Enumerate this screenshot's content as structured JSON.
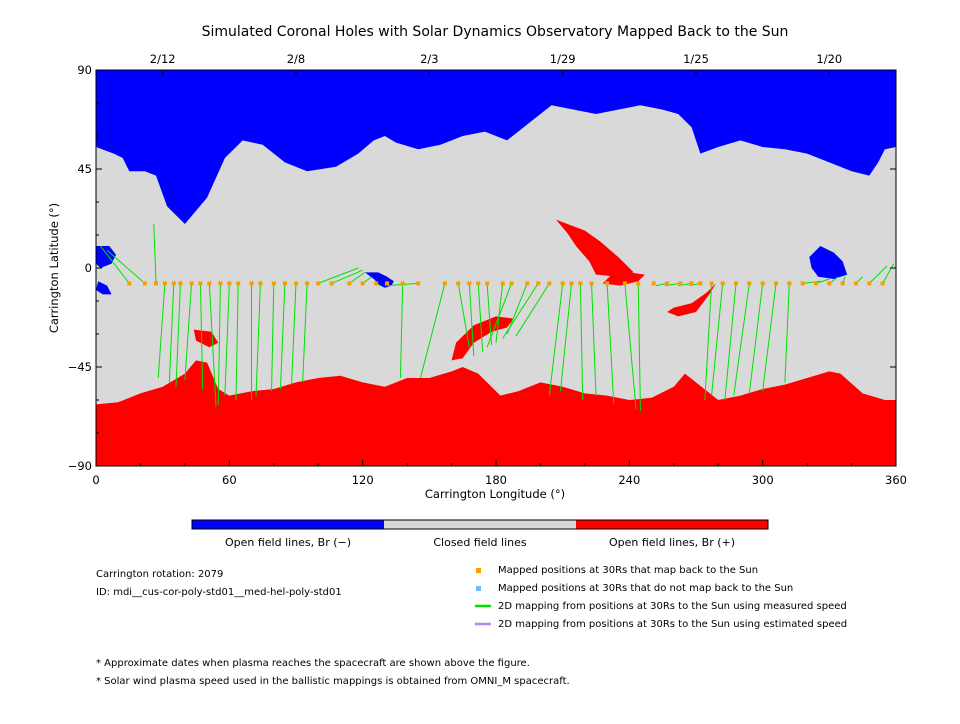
{
  "chart_data": {
    "type": "map",
    "title": "Simulated Coronal Holes with Solar Dynamics Observatory Mapped Back to the Sun",
    "xlabel": "Carrington Longitude (°)",
    "ylabel": "Carrington Latitude (°)",
    "xlim": [
      0,
      360
    ],
    "ylim": [
      -90,
      90
    ],
    "x_ticks": [
      0,
      60,
      120,
      180,
      240,
      300,
      360
    ],
    "y_ticks": [
      90,
      45,
      0,
      -45,
      -90
    ],
    "y_tick_labels": [
      "90",
      "45",
      "0",
      "−45",
      "−90"
    ],
    "top_axis": {
      "dates": [
        {
          "label": "2/12",
          "longitude": 30
        },
        {
          "label": "2/8",
          "longitude": 90
        },
        {
          "label": "2/3",
          "longitude": 150
        },
        {
          "label": "1/29",
          "longitude": 210
        },
        {
          "label": "1/25",
          "longitude": 270
        },
        {
          "label": "1/20",
          "longitude": 330
        }
      ]
    },
    "colors": {
      "open_negative": "#0000ff",
      "closed": "#d9d9d9",
      "open_positive": "#ff0000",
      "mapped_point": "#f5a000",
      "unmapped_point": "#7ab8f5",
      "measured_line": "#00e000",
      "estimated_line": "#b388ee"
    },
    "regions": {
      "north_blue_boundary": [
        [
          0,
          55
        ],
        [
          8,
          52
        ],
        [
          12,
          50
        ],
        [
          15,
          44
        ],
        [
          22,
          44
        ],
        [
          27,
          42
        ],
        [
          32,
          28
        ],
        [
          40,
          20
        ],
        [
          50,
          32
        ],
        [
          58,
          50
        ],
        [
          66,
          58
        ],
        [
          75,
          56
        ],
        [
          85,
          48
        ],
        [
          95,
          44
        ],
        [
          108,
          46
        ],
        [
          118,
          52
        ],
        [
          125,
          58
        ],
        [
          130,
          60
        ],
        [
          135,
          57
        ],
        [
          145,
          54
        ],
        [
          155,
          56
        ],
        [
          165,
          60
        ],
        [
          175,
          62
        ],
        [
          185,
          58
        ],
        [
          195,
          66
        ],
        [
          205,
          74
        ],
        [
          215,
          72
        ],
        [
          225,
          70
        ],
        [
          235,
          72
        ],
        [
          245,
          74
        ],
        [
          255,
          72
        ],
        [
          262,
          70
        ],
        [
          268,
          64
        ],
        [
          272,
          52
        ],
        [
          280,
          55
        ],
        [
          290,
          58
        ],
        [
          300,
          55
        ],
        [
          310,
          54
        ],
        [
          320,
          52
        ],
        [
          330,
          48
        ],
        [
          340,
          44
        ],
        [
          348,
          42
        ],
        [
          352,
          48
        ],
        [
          355,
          54
        ],
        [
          360,
          55
        ]
      ],
      "south_red_boundary": [
        [
          0,
          -62
        ],
        [
          10,
          -61
        ],
        [
          20,
          -57
        ],
        [
          30,
          -54
        ],
        [
          40,
          -48
        ],
        [
          45,
          -42
        ],
        [
          50,
          -43
        ],
        [
          55,
          -55
        ],
        [
          60,
          -58
        ],
        [
          70,
          -56
        ],
        [
          80,
          -55
        ],
        [
          90,
          -52
        ],
        [
          100,
          -50
        ],
        [
          110,
          -49
        ],
        [
          120,
          -52
        ],
        [
          130,
          -54
        ],
        [
          140,
          -50
        ],
        [
          150,
          -50
        ],
        [
          160,
          -47
        ],
        [
          165,
          -45
        ],
        [
          172,
          -48
        ],
        [
          182,
          -58
        ],
        [
          190,
          -56
        ],
        [
          200,
          -52
        ],
        [
          210,
          -54
        ],
        [
          220,
          -57
        ],
        [
          230,
          -58
        ],
        [
          240,
          -60
        ],
        [
          250,
          -59
        ],
        [
          260,
          -54
        ],
        [
          265,
          -48
        ],
        [
          270,
          -52
        ],
        [
          280,
          -60
        ],
        [
          290,
          -58
        ],
        [
          300,
          -55
        ],
        [
          310,
          -53
        ],
        [
          320,
          -50
        ],
        [
          330,
          -47
        ],
        [
          335,
          -48
        ],
        [
          345,
          -57
        ],
        [
          355,
          -60
        ],
        [
          360,
          -60
        ]
      ],
      "negative_patches": [
        {
          "points": [
            [
              0,
              10
            ],
            [
              6,
              10
            ],
            [
              9,
              6
            ],
            [
              7,
              2
            ],
            [
              2,
              0
            ],
            [
              0,
              2
            ]
          ]
        },
        {
          "points": [
            [
              1,
              -6
            ],
            [
              5,
              -8
            ],
            [
              7,
              -12
            ],
            [
              3,
              -12
            ],
            [
              0,
              -10
            ]
          ]
        },
        {
          "points": [
            [
              121,
              -2
            ],
            [
              125,
              -5
            ],
            [
              128,
              -8
            ],
            [
              130,
              -9
            ],
            [
              133,
              -8
            ],
            [
              134,
              -6
            ],
            [
              131,
              -4
            ],
            [
              127,
              -2
            ]
          ]
        },
        {
          "points": [
            [
              326,
              10
            ],
            [
              332,
              7
            ],
            [
              336,
              3
            ],
            [
              338,
              -3
            ],
            [
              332,
              -5
            ],
            [
              325,
              -4
            ],
            [
              322,
              0
            ],
            [
              321,
              5
            ]
          ]
        }
      ],
      "positive_patches": [
        {
          "points": [
            [
              207,
              22
            ],
            [
              220,
              17
            ],
            [
              227,
              12
            ],
            [
              235,
              5
            ],
            [
              242,
              -2
            ],
            [
              235,
              -4
            ],
            [
              225,
              -3
            ],
            [
              222,
              3
            ],
            [
              216,
              10
            ],
            [
              212,
              16
            ]
          ]
        },
        {
          "points": [
            [
              260,
              -18
            ],
            [
              268,
              -16
            ],
            [
              275,
              -11
            ],
            [
              279,
              -7
            ],
            [
              276,
              -12
            ],
            [
              270,
              -20
            ],
            [
              262,
              -22
            ],
            [
              257,
              -20
            ]
          ]
        },
        {
          "points": [
            [
              162,
              -34
            ],
            [
              170,
              -26
            ],
            [
              180,
              -22
            ],
            [
              188,
              -23
            ],
            [
              185,
              -27
            ],
            [
              178,
              -29
            ],
            [
              170,
              -34
            ],
            [
              165,
              -41
            ],
            [
              160,
              -42
            ]
          ]
        },
        {
          "points": [
            [
              44,
              -28
            ],
            [
              52,
              -29
            ],
            [
              55,
              -34
            ],
            [
              51,
              -36
            ],
            [
              45,
              -33
            ]
          ]
        },
        {
          "points": [
            [
              228,
              -7
            ],
            [
              236,
              -8
            ],
            [
              244,
              -6
            ],
            [
              247,
              -3
            ],
            [
              240,
              -2
            ],
            [
              232,
              -3
            ]
          ]
        }
      ]
    },
    "mapped_points": [
      {
        "lon": 15,
        "lat": -7,
        "sun_lon": 2,
        "sun_lat": 10
      },
      {
        "lon": 22,
        "lat": -7,
        "sun_lon": 5,
        "sun_lat": 8
      },
      {
        "lon": 27,
        "lat": -7,
        "sun_lon": 26,
        "sun_lat": 20
      },
      {
        "lon": 31,
        "lat": -7,
        "sun_lon": 28,
        "sun_lat": -50
      },
      {
        "lon": 35,
        "lat": -7,
        "sun_lon": 33,
        "sun_lat": -52
      },
      {
        "lon": 38,
        "lat": -7,
        "sun_lon": 36,
        "sun_lat": -54
      },
      {
        "lon": 43,
        "lat": -7,
        "sun_lon": 40,
        "sun_lat": -51
      },
      {
        "lon": 47,
        "lat": -7,
        "sun_lon": 48,
        "sun_lat": -55
      },
      {
        "lon": 51,
        "lat": -7,
        "sun_lon": 54,
        "sun_lat": -63
      },
      {
        "lon": 56,
        "lat": -7,
        "sun_lon": 55,
        "sun_lat": -62
      },
      {
        "lon": 60,
        "lat": -7,
        "sun_lon": 58,
        "sun_lat": -58
      },
      {
        "lon": 64,
        "lat": -7,
        "sun_lon": 63,
        "sun_lat": -60
      },
      {
        "lon": 70,
        "lat": -7,
        "sun_lon": 70,
        "sun_lat": -60
      },
      {
        "lon": 74,
        "lat": -7,
        "sun_lon": 72,
        "sun_lat": -58
      },
      {
        "lon": 80,
        "lat": -7,
        "sun_lon": 79,
        "sun_lat": -56
      },
      {
        "lon": 85,
        "lat": -7,
        "sun_lon": 83,
        "sun_lat": -55
      },
      {
        "lon": 90,
        "lat": -7,
        "sun_lon": 88,
        "sun_lat": -53
      },
      {
        "lon": 95,
        "lat": -7,
        "sun_lon": 93,
        "sun_lat": -52
      },
      {
        "lon": 100,
        "lat": -7,
        "sun_lon": 118,
        "sun_lat": 0
      },
      {
        "lon": 106,
        "lat": -7,
        "sun_lon": 120,
        "sun_lat": -1
      },
      {
        "lon": 114,
        "lat": -7,
        "sun_lon": 121,
        "sun_lat": -2
      },
      {
        "lon": 120,
        "lat": -7,
        "sun_lon": 124,
        "sun_lat": -4
      },
      {
        "lon": 126,
        "lat": -7,
        "sun_lon": 128,
        "sun_lat": -8
      },
      {
        "lon": 131,
        "lat": -7,
        "sun_lon": 130,
        "sun_lat": -8
      },
      {
        "lon": 138,
        "lat": -7,
        "sun_lon": 137,
        "sun_lat": -50
      },
      {
        "lon": 145,
        "lat": -7,
        "sun_lon": 131,
        "sun_lat": -8
      },
      {
        "lon": 157,
        "lat": -7,
        "sun_lon": 146,
        "sun_lat": -50
      },
      {
        "lon": 163,
        "lat": -7,
        "sun_lon": 168,
        "sun_lat": -36
      },
      {
        "lon": 168,
        "lat": -7,
        "sun_lon": 170,
        "sun_lat": -40
      },
      {
        "lon": 172,
        "lat": -7,
        "sun_lon": 174,
        "sun_lat": -38
      },
      {
        "lon": 176,
        "lat": -7,
        "sun_lon": 178,
        "sun_lat": -35
      },
      {
        "lon": 183,
        "lat": -7,
        "sun_lon": 180,
        "sun_lat": -34
      },
      {
        "lon": 187,
        "lat": -7,
        "sun_lon": 176,
        "sun_lat": -36
      },
      {
        "lon": 194,
        "lat": -7,
        "sun_lon": 185,
        "sun_lat": -30
      },
      {
        "lon": 199,
        "lat": -7,
        "sun_lon": 183,
        "sun_lat": -32
      },
      {
        "lon": 204,
        "lat": -7,
        "sun_lon": 189,
        "sun_lat": -31
      },
      {
        "lon": 210,
        "lat": -7,
        "sun_lon": 204,
        "sun_lat": -58
      },
      {
        "lon": 214,
        "lat": -7,
        "sun_lon": 209,
        "sun_lat": -56
      },
      {
        "lon": 218,
        "lat": -7,
        "sun_lon": 219,
        "sun_lat": -60
      },
      {
        "lon": 223,
        "lat": -7,
        "sun_lon": 225,
        "sun_lat": -58
      },
      {
        "lon": 230,
        "lat": -7,
        "sun_lon": 233,
        "sun_lat": -62
      },
      {
        "lon": 238,
        "lat": -7,
        "sun_lon": 243,
        "sun_lat": -64
      },
      {
        "lon": 244,
        "lat": -7,
        "sun_lon": 245,
        "sun_lat": -65
      },
      {
        "lon": 251,
        "lat": -7,
        "sun_lon": 250,
        "sun_lat": -8
      },
      {
        "lon": 257,
        "lat": -7,
        "sun_lon": 252,
        "sun_lat": -8
      },
      {
        "lon": 263,
        "lat": -7,
        "sun_lon": 256,
        "sun_lat": -8
      },
      {
        "lon": 268,
        "lat": -7,
        "sun_lon": 262,
        "sun_lat": -8
      },
      {
        "lon": 272,
        "lat": -7,
        "sun_lon": 267,
        "sun_lat": -8
      },
      {
        "lon": 277,
        "lat": -7,
        "sun_lon": 274,
        "sun_lat": -60
      },
      {
        "lon": 282,
        "lat": -7,
        "sun_lon": 277,
        "sun_lat": -58
      },
      {
        "lon": 288,
        "lat": -7,
        "sun_lon": 283,
        "sun_lat": -60
      },
      {
        "lon": 294,
        "lat": -7,
        "sun_lon": 287,
        "sun_lat": -58
      },
      {
        "lon": 300,
        "lat": -7,
        "sun_lon": 294,
        "sun_lat": -57
      },
      {
        "lon": 306,
        "lat": -7,
        "sun_lon": 300,
        "sun_lat": -56
      },
      {
        "lon": 312,
        "lat": -7,
        "sun_lon": 310,
        "sun_lat": -52
      },
      {
        "lon": 318,
        "lat": -7,
        "sun_lon": 326,
        "sun_lat": -6
      },
      {
        "lon": 324,
        "lat": -7,
        "sun_lon": 330,
        "sun_lat": -5
      },
      {
        "lon": 330,
        "lat": -7,
        "sun_lon": 334,
        "sun_lat": -4
      },
      {
        "lon": 336,
        "lat": -7,
        "sun_lon": 337,
        "sun_lat": -4
      },
      {
        "lon": 342,
        "lat": -7,
        "sun_lon": 345,
        "sun_lat": -4
      },
      {
        "lon": 348,
        "lat": -7,
        "sun_lon": 356,
        "sun_lat": 1
      },
      {
        "lon": 354,
        "lat": -7,
        "sun_lon": 359,
        "sun_lat": 2
      }
    ],
    "colorbar": {
      "labels": [
        "Open field lines, Br (−)",
        "Closed field lines",
        "Open field lines, Br (+)"
      ]
    },
    "legend": [
      {
        "label": "Mapped positions at 30Rs that map back to the Sun",
        "key": "mapped_point"
      },
      {
        "label": "Mapped positions at 30Rs that do not map back to the Sun",
        "key": "unmapped_point"
      },
      {
        "label": "2D mapping from positions at 30Rs to the Sun using measured speed",
        "key": "measured_line"
      },
      {
        "label": "2D mapping from positions at 30Rs to the Sun using estimated speed",
        "key": "estimated_line"
      }
    ],
    "info": {
      "rotation": "Carrington rotation: 2079",
      "id": "ID: mdi__cus-cor-poly-std01__med-hel-poly-std01"
    },
    "footnotes": [
      "* Approximate dates when plasma reaches the spacecraft are shown above the figure.",
      "* Solar wind plasma speed used in the ballistic mappings is obtained from OMNI_M spacecraft."
    ]
  }
}
